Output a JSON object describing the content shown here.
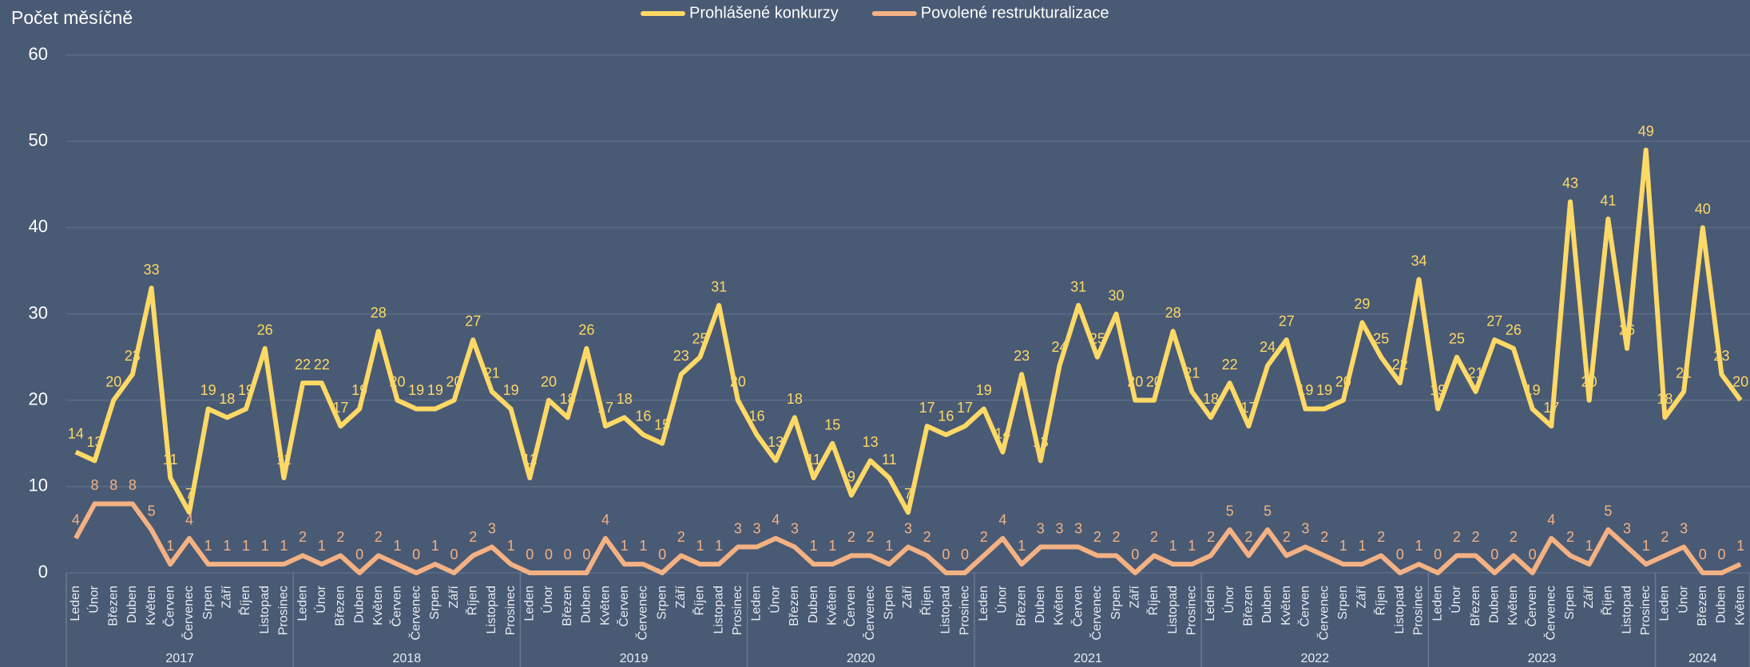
{
  "chart_data": {
    "type": "line",
    "title": "Počet měsíčně",
    "legend": "top",
    "grid": true,
    "ylim": [
      0,
      60
    ],
    "yticks": [
      0,
      10,
      20,
      30,
      40,
      50,
      60
    ],
    "category_groups": [
      {
        "label": "2017",
        "categories": [
          "Leden",
          "Únor",
          "Březen",
          "Duben",
          "Květen",
          "Červen",
          "Červenec",
          "Srpen",
          "Září",
          "Říjen",
          "Listopad",
          "Prosinec"
        ]
      },
      {
        "label": "2018",
        "categories": [
          "Leden",
          "Únor",
          "Březen",
          "Duben",
          "Květen",
          "Červen",
          "Červenec",
          "Srpen",
          "Září",
          "Říjen",
          "Listopad",
          "Prosinec"
        ]
      },
      {
        "label": "2019",
        "categories": [
          "Leden",
          "Únor",
          "Březen",
          "Duben",
          "Květen",
          "Červen",
          "Červenec",
          "Srpen",
          "Září",
          "Říjen",
          "Listopad",
          "Prosinec"
        ]
      },
      {
        "label": "2020",
        "categories": [
          "Leden",
          "Únor",
          "Březen",
          "Duben",
          "Květen",
          "Červen",
          "Červenec",
          "Srpen",
          "Září",
          "Říjen",
          "Listopad",
          "Prosinec"
        ]
      },
      {
        "label": "2021",
        "categories": [
          "Leden",
          "Únor",
          "Březen",
          "Duben",
          "Květen",
          "Červen",
          "Červenec",
          "Srpen",
          "Září",
          "Říjen",
          "Listopad",
          "Prosinec"
        ]
      },
      {
        "label": "2022",
        "categories": [
          "Leden",
          "Únor",
          "Březen",
          "Duben",
          "Květen",
          "Červen",
          "Červenec",
          "Srpen",
          "Září",
          "Říjen",
          "Listopad",
          "Prosinec"
        ]
      },
      {
        "label": "2023",
        "categories": [
          "Leden",
          "Únor",
          "Březen",
          "Duben",
          "Květen",
          "Červen",
          "Červenec",
          "Srpen",
          "Září",
          "Říjen",
          "Listopad",
          "Prosinec"
        ]
      },
      {
        "label": "2024",
        "categories": [
          "Leden",
          "Únor",
          "Březen",
          "Duben",
          "Květen"
        ]
      }
    ],
    "series": [
      {
        "name": "Prohlášené konkurzy",
        "color": "#ffd966",
        "values": [
          14,
          13,
          20,
          23,
          33,
          11,
          7,
          19,
          18,
          19,
          26,
          11,
          22,
          22,
          17,
          19,
          28,
          20,
          19,
          19,
          20,
          27,
          21,
          19,
          11,
          20,
          18,
          26,
          17,
          18,
          16,
          15,
          23,
          25,
          31,
          20,
          16,
          13,
          18,
          11,
          15,
          9,
          13,
          11,
          7,
          17,
          16,
          17,
          19,
          14,
          23,
          13,
          24,
          31,
          25,
          30,
          20,
          20,
          28,
          21,
          18,
          22,
          17,
          24,
          27,
          19,
          19,
          20,
          29,
          25,
          22,
          34,
          19,
          25,
          21,
          27,
          26,
          19,
          17,
          43,
          20,
          41,
          26,
          49,
          18,
          21,
          40,
          23,
          20
        ]
      },
      {
        "name": "Povolené restrukturalizace",
        "color": "#f4b183",
        "values": [
          4,
          8,
          8,
          8,
          5,
          1,
          4,
          1,
          1,
          1,
          1,
          1,
          2,
          1,
          2,
          0,
          2,
          1,
          0,
          1,
          0,
          2,
          3,
          1,
          0,
          0,
          0,
          0,
          4,
          1,
          1,
          0,
          2,
          1,
          1,
          3,
          3,
          4,
          3,
          1,
          1,
          2,
          2,
          1,
          3,
          2,
          0,
          0,
          2,
          4,
          1,
          3,
          3,
          3,
          2,
          2,
          0,
          2,
          1,
          1,
          2,
          5,
          2,
          5,
          2,
          3,
          2,
          1,
          1,
          2,
          0,
          1,
          0,
          2,
          2,
          0,
          2,
          0,
          4,
          2,
          1,
          5,
          3,
          1,
          2,
          3,
          0,
          0,
          1
        ]
      }
    ]
  }
}
